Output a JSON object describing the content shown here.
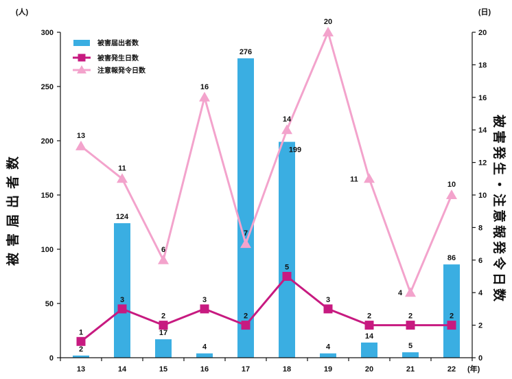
{
  "chart_data": {
    "type": "bar",
    "categories": [
      "13",
      "14",
      "15",
      "16",
      "17",
      "18",
      "19",
      "20",
      "21",
      "22"
    ],
    "x_unit": "(年)",
    "left_axis": {
      "title": "被害届出者数",
      "unit": "(人)",
      "range": [
        0,
        300
      ],
      "ticks": [
        0,
        50,
        100,
        150,
        200,
        250,
        300
      ]
    },
    "right_axis": {
      "title": "被害発生・注意報発令日数",
      "unit": "(日)",
      "range": [
        0,
        20
      ],
      "ticks": [
        0,
        2,
        4,
        6,
        8,
        10,
        12,
        14,
        16,
        18,
        20
      ]
    },
    "series": [
      {
        "name": "被害届出者数",
        "type": "bar",
        "axis": "left",
        "color": "#3aaee2",
        "values": [
          2,
          124,
          17,
          4,
          276,
          199,
          4,
          14,
          5,
          86
        ]
      },
      {
        "name": "被害発生日数",
        "type": "line",
        "axis": "right",
        "marker": "square",
        "color": "#c71a80",
        "values": [
          1,
          3,
          2,
          3,
          2,
          5,
          3,
          2,
          2,
          2
        ]
      },
      {
        "name": "注意報発令日数",
        "type": "line",
        "axis": "right",
        "marker": "triangle",
        "color": "#f3a3cc",
        "values": [
          13,
          11,
          6,
          16,
          7,
          14,
          20,
          11,
          4,
          10
        ]
      }
    ],
    "data_labels": true,
    "legend": "top-left",
    "grid": false
  }
}
